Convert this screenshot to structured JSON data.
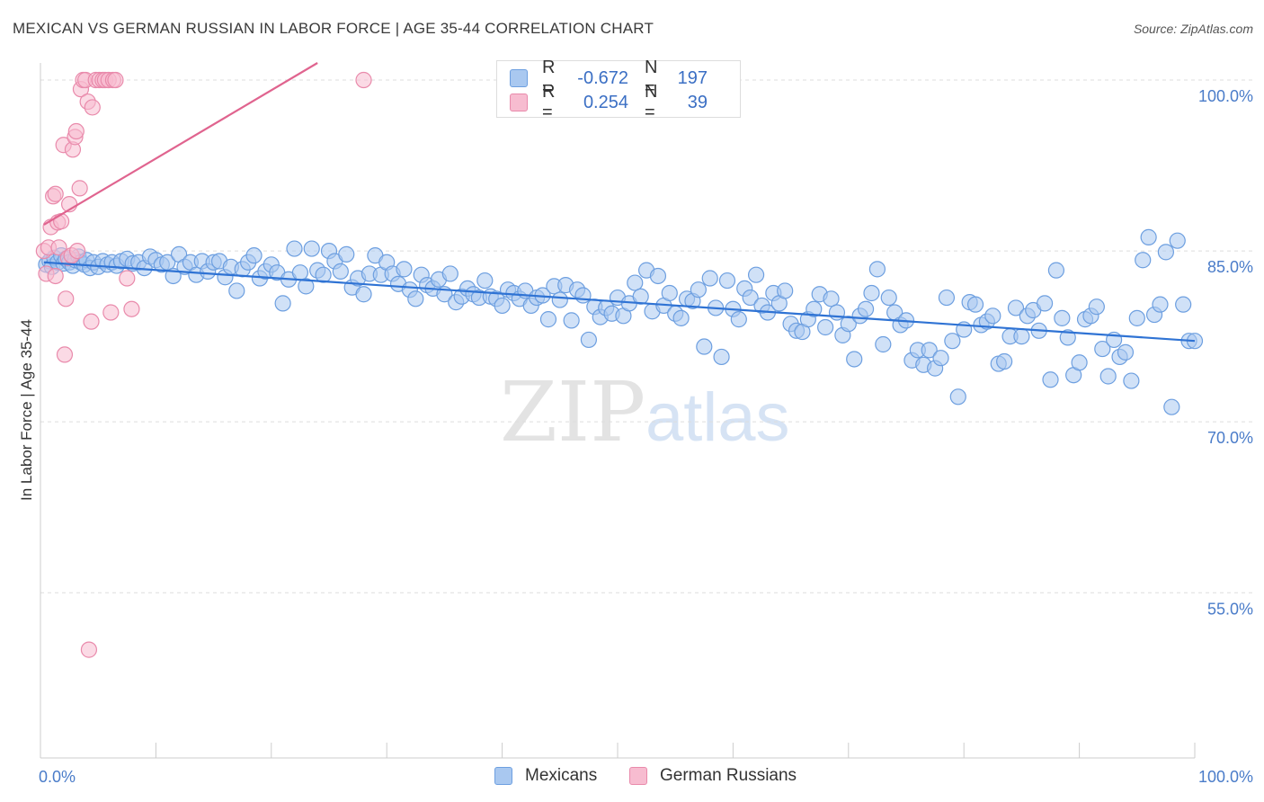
{
  "title": "MEXICAN VS GERMAN RUSSIAN IN LABOR FORCE | AGE 35-44 CORRELATION CHART",
  "source": "Source: ZipAtlas.com",
  "colors": {
    "blue_fill": "#a9c8f0",
    "blue_stroke": "#6d9fe0",
    "blue_line": "#2f73d4",
    "pink_fill": "#f7bcd0",
    "pink_stroke": "#e98aab",
    "pink_line": "#e0648f",
    "grid": "#dddddd",
    "tick_text": "#4a7cc9"
  },
  "legend_top": {
    "rows": [
      {
        "series": "Mexicans",
        "r_label": "R =",
        "r_value": "-0.672",
        "n_label": "N =",
        "n_value": "197"
      },
      {
        "series": "German Russians",
        "r_label": "R =",
        "r_value": "0.254",
        "n_label": "N =",
        "n_value": "39"
      }
    ]
  },
  "legend_bottom": {
    "items": [
      "Mexicans",
      "German Russians"
    ]
  },
  "watermark": {
    "part1": "ZIP",
    "part2": "atlas"
  },
  "chart_data": {
    "type": "scatter",
    "title": "MEXICAN VS GERMAN RUSSIAN IN LABOR FORCE | AGE 35-44 CORRELATION CHART",
    "xlabel": "",
    "ylabel": "In Labor Force | Age 35-44",
    "xlim": [
      0,
      100
    ],
    "ylim": [
      40.5,
      101.5
    ],
    "x_tick_labels": [
      {
        "value": 0,
        "label": "0.0%"
      },
      {
        "value": 100,
        "label": "100.0%"
      }
    ],
    "y_tick_labels": [
      {
        "value": 100,
        "label": "100.0%"
      },
      {
        "value": 85,
        "label": "85.0%"
      },
      {
        "value": 70,
        "label": "70.0%"
      },
      {
        "value": 55,
        "label": "55.0%"
      }
    ],
    "y_gridlines": [
      100,
      85,
      70,
      55
    ],
    "x_minor_ticks": [
      0,
      10,
      20,
      30,
      40,
      50,
      60,
      70,
      80,
      90,
      100
    ],
    "series": [
      {
        "name": "Mexicans",
        "r": -0.672,
        "n": 197,
        "trend": {
          "x": [
            0.3,
            100
          ],
          "y": [
            84.0,
            77.1
          ]
        },
        "points": [
          [
            0.5,
            83.8
          ],
          [
            0.8,
            84.1
          ],
          [
            1.0,
            83.6
          ],
          [
            1.2,
            84.4
          ],
          [
            1.5,
            84.0
          ],
          [
            1.8,
            84.6
          ],
          [
            2.0,
            83.9
          ],
          [
            2.2,
            84.3
          ],
          [
            2.5,
            84.0
          ],
          [
            2.8,
            83.7
          ],
          [
            3.0,
            84.2
          ],
          [
            3.3,
            84.5
          ],
          [
            3.5,
            84.0
          ],
          [
            3.8,
            83.8
          ],
          [
            4.0,
            84.2
          ],
          [
            4.3,
            83.5
          ],
          [
            4.6,
            84.0
          ],
          [
            5.0,
            83.6
          ],
          [
            5.4,
            84.1
          ],
          [
            5.8,
            83.8
          ],
          [
            6.2,
            84.0
          ],
          [
            6.6,
            83.7
          ],
          [
            7.0,
            84.1
          ],
          [
            7.5,
            84.3
          ],
          [
            8.0,
            83.9
          ],
          [
            8.5,
            84.0
          ],
          [
            9.0,
            83.5
          ],
          [
            9.5,
            84.5
          ],
          [
            10.0,
            84.2
          ],
          [
            10.5,
            83.8
          ],
          [
            11.0,
            84.0
          ],
          [
            11.5,
            82.8
          ],
          [
            12.0,
            84.7
          ],
          [
            12.5,
            83.6
          ],
          [
            13.0,
            84.0
          ],
          [
            13.5,
            82.9
          ],
          [
            14.0,
            84.1
          ],
          [
            14.5,
            83.2
          ],
          [
            15.0,
            84.0
          ],
          [
            15.5,
            84.1
          ],
          [
            16.0,
            82.7
          ],
          [
            16.5,
            83.6
          ],
          [
            17.0,
            81.5
          ],
          [
            17.5,
            83.4
          ],
          [
            18.0,
            84.0
          ],
          [
            18.5,
            84.6
          ],
          [
            19.0,
            82.6
          ],
          [
            19.5,
            83.2
          ],
          [
            20.0,
            83.8
          ],
          [
            20.5,
            83.1
          ],
          [
            21.0,
            80.4
          ],
          [
            21.5,
            82.5
          ],
          [
            22.0,
            85.2
          ],
          [
            22.5,
            83.1
          ],
          [
            23.0,
            81.9
          ],
          [
            23.5,
            85.2
          ],
          [
            24.0,
            83.3
          ],
          [
            24.5,
            82.9
          ],
          [
            25.0,
            85.0
          ],
          [
            25.5,
            84.1
          ],
          [
            26.0,
            83.2
          ],
          [
            26.5,
            84.7
          ],
          [
            27.0,
            81.8
          ],
          [
            27.5,
            82.6
          ],
          [
            28.0,
            81.2
          ],
          [
            28.5,
            83.0
          ],
          [
            29.0,
            84.6
          ],
          [
            29.5,
            82.9
          ],
          [
            30.0,
            84.0
          ],
          [
            30.5,
            83.0
          ],
          [
            31.0,
            82.1
          ],
          [
            31.5,
            83.4
          ],
          [
            32.0,
            81.6
          ],
          [
            32.5,
            80.8
          ],
          [
            33.0,
            82.9
          ],
          [
            33.5,
            82.0
          ],
          [
            34.0,
            81.7
          ],
          [
            34.5,
            82.5
          ],
          [
            35.0,
            81.2
          ],
          [
            35.5,
            83.0
          ],
          [
            36.0,
            80.5
          ],
          [
            36.5,
            81.0
          ],
          [
            37.0,
            81.7
          ],
          [
            37.5,
            81.2
          ],
          [
            38.0,
            80.9
          ],
          [
            38.5,
            82.4
          ],
          [
            39.0,
            81.0
          ],
          [
            39.5,
            80.8
          ],
          [
            40.0,
            80.2
          ],
          [
            40.5,
            81.6
          ],
          [
            41.0,
            81.3
          ],
          [
            41.5,
            80.8
          ],
          [
            42.0,
            81.5
          ],
          [
            42.5,
            80.2
          ],
          [
            43.0,
            80.9
          ],
          [
            43.5,
            81.1
          ],
          [
            44.0,
            79.0
          ],
          [
            44.5,
            81.9
          ],
          [
            45.0,
            80.7
          ],
          [
            45.5,
            82.0
          ],
          [
            46.0,
            78.9
          ],
          [
            46.5,
            81.6
          ],
          [
            47.0,
            81.1
          ],
          [
            47.5,
            77.2
          ],
          [
            48.0,
            80.1
          ],
          [
            48.5,
            79.2
          ],
          [
            49.0,
            80.0
          ],
          [
            49.5,
            79.5
          ],
          [
            50.0,
            80.9
          ],
          [
            50.5,
            79.3
          ],
          [
            51.0,
            80.4
          ],
          [
            51.5,
            82.2
          ],
          [
            52.0,
            81.0
          ],
          [
            52.5,
            83.3
          ],
          [
            53.0,
            79.7
          ],
          [
            53.5,
            82.8
          ],
          [
            54.0,
            80.2
          ],
          [
            54.5,
            81.3
          ],
          [
            55.0,
            79.5
          ],
          [
            55.5,
            79.1
          ],
          [
            56.0,
            80.8
          ],
          [
            56.5,
            80.6
          ],
          [
            57.0,
            81.6
          ],
          [
            57.5,
            76.6
          ],
          [
            58.0,
            82.6
          ],
          [
            58.5,
            80.0
          ],
          [
            59.0,
            75.7
          ],
          [
            59.5,
            82.4
          ],
          [
            60.0,
            79.9
          ],
          [
            60.5,
            79.0
          ],
          [
            61.0,
            81.7
          ],
          [
            61.5,
            80.9
          ],
          [
            62.0,
            82.9
          ],
          [
            62.5,
            80.2
          ],
          [
            63.0,
            79.6
          ],
          [
            63.5,
            81.3
          ],
          [
            64.0,
            80.4
          ],
          [
            64.5,
            81.5
          ],
          [
            65.0,
            78.6
          ],
          [
            65.5,
            78.0
          ],
          [
            66.0,
            77.9
          ],
          [
            66.5,
            79.0
          ],
          [
            67.0,
            79.9
          ],
          [
            67.5,
            81.2
          ],
          [
            68.0,
            78.3
          ],
          [
            68.5,
            80.8
          ],
          [
            69.0,
            79.6
          ],
          [
            69.5,
            77.6
          ],
          [
            70.0,
            78.6
          ],
          [
            70.5,
            75.5
          ],
          [
            71.0,
            79.3
          ],
          [
            71.5,
            79.9
          ],
          [
            72.0,
            81.3
          ],
          [
            72.5,
            83.4
          ],
          [
            73.0,
            76.8
          ],
          [
            73.5,
            80.9
          ],
          [
            74.0,
            79.6
          ],
          [
            74.5,
            78.5
          ],
          [
            75.0,
            78.9
          ],
          [
            75.5,
            75.4
          ],
          [
            76.0,
            76.3
          ],
          [
            76.5,
            75.0
          ],
          [
            77.0,
            76.3
          ],
          [
            77.5,
            74.7
          ],
          [
            78.0,
            75.6
          ],
          [
            78.5,
            80.9
          ],
          [
            79.0,
            77.1
          ],
          [
            79.5,
            72.2
          ],
          [
            80.0,
            78.1
          ],
          [
            80.5,
            80.5
          ],
          [
            81.0,
            80.3
          ],
          [
            81.5,
            78.5
          ],
          [
            82.0,
            78.8
          ],
          [
            82.5,
            79.3
          ],
          [
            83.0,
            75.1
          ],
          [
            83.5,
            75.3
          ],
          [
            84.0,
            77.5
          ],
          [
            84.5,
            80.0
          ],
          [
            85.0,
            77.5
          ],
          [
            85.5,
            79.3
          ],
          [
            86.0,
            79.8
          ],
          [
            86.5,
            78.0
          ],
          [
            87.0,
            80.4
          ],
          [
            87.5,
            73.7
          ],
          [
            88.0,
            83.3
          ],
          [
            88.5,
            79.1
          ],
          [
            89.0,
            77.4
          ],
          [
            89.5,
            74.1
          ],
          [
            90.0,
            75.2
          ],
          [
            90.5,
            79.0
          ],
          [
            91.0,
            79.3
          ],
          [
            91.5,
            80.1
          ],
          [
            92.0,
            76.4
          ],
          [
            92.5,
            74.0
          ],
          [
            93.0,
            77.2
          ],
          [
            93.5,
            75.7
          ],
          [
            94.0,
            76.1
          ],
          [
            94.5,
            73.6
          ],
          [
            95.0,
            79.1
          ],
          [
            95.5,
            84.2
          ],
          [
            96.0,
            86.2
          ],
          [
            96.5,
            79.4
          ],
          [
            97.0,
            80.3
          ],
          [
            97.5,
            84.9
          ],
          [
            98.0,
            71.3
          ],
          [
            98.5,
            85.9
          ],
          [
            99.0,
            80.3
          ],
          [
            99.5,
            77.1
          ],
          [
            100.0,
            77.1
          ]
        ]
      },
      {
        "name": "German Russians",
        "r": 0.254,
        "n": 39,
        "trend": {
          "x": [
            0.3,
            24.0
          ],
          "y": [
            87.3,
            101.5
          ]
        },
        "points": [
          [
            0.3,
            85.0
          ],
          [
            0.5,
            83.0
          ],
          [
            0.7,
            85.3
          ],
          [
            0.9,
            87.1
          ],
          [
            1.1,
            89.8
          ],
          [
            1.3,
            82.8
          ],
          [
            1.3,
            90.0
          ],
          [
            1.5,
            87.5
          ],
          [
            1.6,
            85.3
          ],
          [
            1.8,
            87.6
          ],
          [
            2.0,
            94.3
          ],
          [
            2.1,
            75.9
          ],
          [
            2.2,
            80.8
          ],
          [
            2.4,
            84.4
          ],
          [
            2.5,
            89.1
          ],
          [
            2.7,
            84.6
          ],
          [
            2.8,
            93.9
          ],
          [
            3.0,
            95.0
          ],
          [
            3.1,
            95.5
          ],
          [
            3.2,
            85.0
          ],
          [
            3.4,
            90.5
          ],
          [
            3.5,
            99.2
          ],
          [
            3.7,
            100.0
          ],
          [
            3.9,
            100.0
          ],
          [
            4.1,
            98.1
          ],
          [
            4.2,
            50.0
          ],
          [
            4.4,
            78.8
          ],
          [
            4.5,
            97.6
          ],
          [
            4.8,
            100.0
          ],
          [
            5.1,
            100.0
          ],
          [
            5.4,
            100.0
          ],
          [
            5.6,
            100.0
          ],
          [
            5.9,
            100.0
          ],
          [
            6.1,
            79.6
          ],
          [
            6.3,
            100.0
          ],
          [
            6.5,
            100.0
          ],
          [
            7.5,
            82.6
          ],
          [
            7.9,
            79.9
          ],
          [
            28.0,
            100.0
          ]
        ]
      }
    ]
  }
}
